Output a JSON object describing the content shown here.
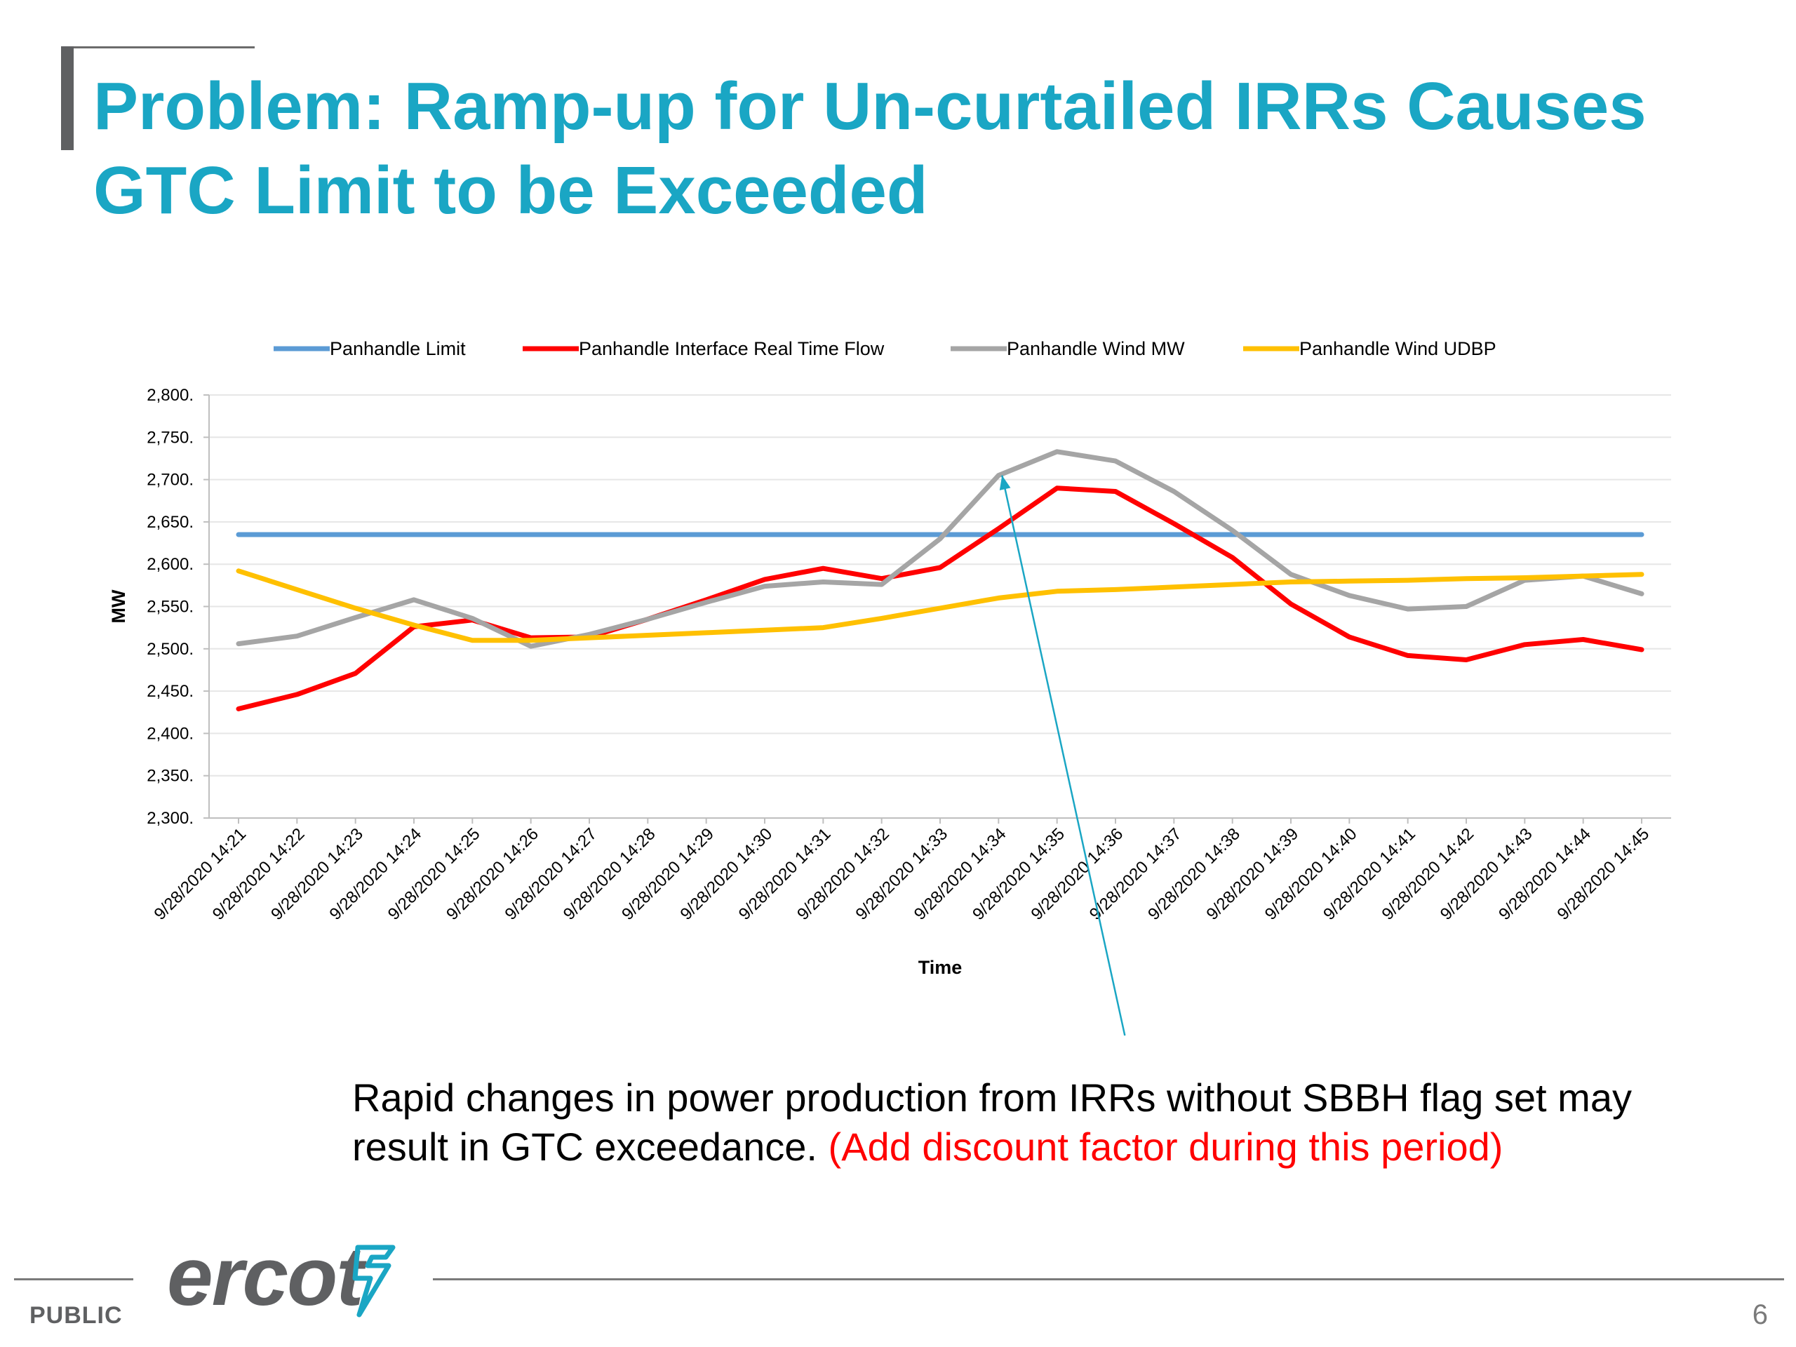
{
  "slide": {
    "title_line1": "Problem: Ramp-up for Un-curtailed IRRs Causes",
    "title_line2": "GTC Limit to be Exceeded",
    "caption_main": "Rapid changes in power production from IRRs without SBBH flag set may result in GTC exceedance.",
    "caption_note": "(Add discount factor during this period)",
    "classification": "PUBLIC",
    "page_number": "6",
    "logo_text": "ercot",
    "accent_color": "#1aa6c4",
    "note_color": "#ff0000"
  },
  "chart_data": {
    "type": "line",
    "title": "",
    "xlabel": "Time",
    "ylabel": "MW",
    "ylim": [
      2300,
      2800
    ],
    "yticks": [
      2300,
      2350,
      2400,
      2450,
      2500,
      2550,
      2600,
      2650,
      2700,
      2750,
      2800
    ],
    "ytick_labels": [
      "2,300.",
      "2,350.",
      "2,400.",
      "2,450.",
      "2,500.",
      "2,550.",
      "2,600.",
      "2,650.",
      "2,700.",
      "2,750.",
      "2,800."
    ],
    "grid": true,
    "legend_position": "top",
    "categories": [
      "9/28/2020 14:21",
      "9/28/2020 14:22",
      "9/28/2020 14:23",
      "9/28/2020 14:24",
      "9/28/2020 14:25",
      "9/28/2020 14:26",
      "9/28/2020 14:27",
      "9/28/2020 14:28",
      "9/28/2020 14:29",
      "9/28/2020 14:30",
      "9/28/2020 14:31",
      "9/28/2020 14:32",
      "9/28/2020 14:33",
      "9/28/2020 14:34",
      "9/28/2020 14:35",
      "9/28/2020 14:36",
      "9/28/2020 14:37",
      "9/28/2020 14:38",
      "9/28/2020 14:39",
      "9/28/2020 14:40",
      "9/28/2020 14:41",
      "9/28/2020 14:42",
      "9/28/2020 14:43",
      "9/28/2020 14:44",
      "9/28/2020 14:45"
    ],
    "series": [
      {
        "name": "Panhandle Limit",
        "color": "#5b9bd5",
        "values": [
          2635,
          2635,
          2635,
          2635,
          2635,
          2635,
          2635,
          2635,
          2635,
          2635,
          2635,
          2635,
          2635,
          2635,
          2635,
          2635,
          2635,
          2635,
          2635,
          2635,
          2635,
          2635,
          2635,
          2635,
          2635
        ]
      },
      {
        "name": "Panhandle Interface Real Time Flow",
        "color": "#ff0000",
        "values": [
          2429,
          2446,
          2471,
          2526,
          2534,
          2513,
          2514,
          2535,
          2558,
          2582,
          2595,
          2583,
          2596,
          2642,
          2690,
          2686,
          2648,
          2608,
          2553,
          2514,
          2492,
          2487,
          2505,
          2511,
          2499
        ]
      },
      {
        "name": "Panhandle Wind MW",
        "color": "#a5a5a5",
        "values": [
          2506,
          2515,
          2537,
          2558,
          2536,
          2503,
          2517,
          2535,
          2555,
          2574,
          2579,
          2576,
          2630,
          2705,
          2733,
          2722,
          2686,
          2640,
          2588,
          2563,
          2547,
          2550,
          2581,
          2586,
          2565
        ]
      },
      {
        "name": "Panhandle Wind UDBP",
        "color": "#ffc000",
        "values": [
          2592,
          2570,
          2548,
          2528,
          2510,
          2510,
          2513,
          2516,
          2519,
          2522,
          2525,
          2536,
          2548,
          2560,
          2568,
          2570,
          2573,
          2576,
          2579,
          2580,
          2581,
          2583,
          2584,
          2586,
          2588
        ]
      }
    ],
    "annotation_arrow": {
      "from_category": "9/28/2020 14:37",
      "to_category": "9/28/2020 14:34",
      "to_value": 2700,
      "color": "#1aa6c4"
    }
  }
}
